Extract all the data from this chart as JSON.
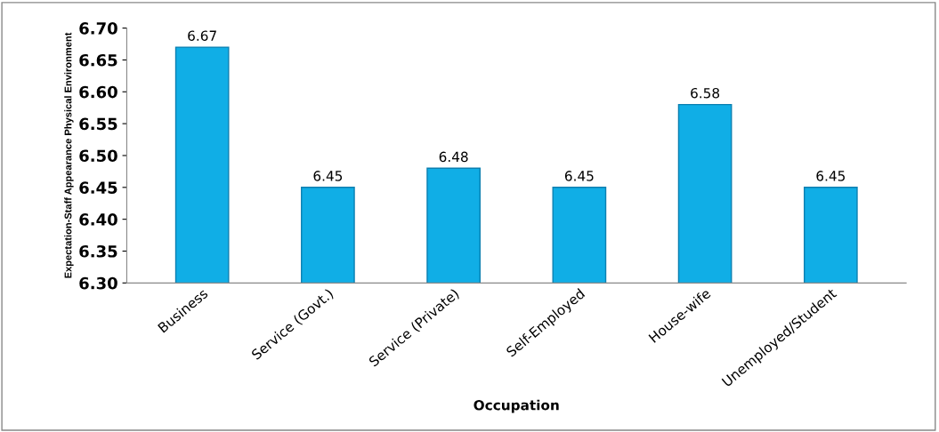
{
  "chart_data": {
    "type": "bar",
    "xlabel": "Occupation",
    "ylabel": "Expectation-Staff Appearance Physical Environment",
    "categories": [
      "Business",
      "Service (Govt.)",
      "Service (Private)",
      "Self-Employed",
      "House-wife",
      "Unemployed/Student"
    ],
    "values": [
      6.67,
      6.45,
      6.48,
      6.45,
      6.58,
      6.45
    ],
    "color": "#10aee6",
    "data_labels": true,
    "grid": false,
    "legend": false,
    "ylim": [
      6.3,
      6.7
    ],
    "yticks": [
      {
        "value": 6.3,
        "label": "6.30"
      },
      {
        "value": 6.35,
        "label": "6.35"
      },
      {
        "value": 6.4,
        "label": "6.40"
      },
      {
        "value": 6.45,
        "label": "6.45"
      },
      {
        "value": 6.5,
        "label": "6.50"
      },
      {
        "value": 6.55,
        "label": "6.55"
      },
      {
        "value": 6.6,
        "label": "6.60"
      },
      {
        "value": 6.65,
        "label": "6.65"
      },
      {
        "value": 6.7,
        "label": "6.70"
      }
    ]
  }
}
